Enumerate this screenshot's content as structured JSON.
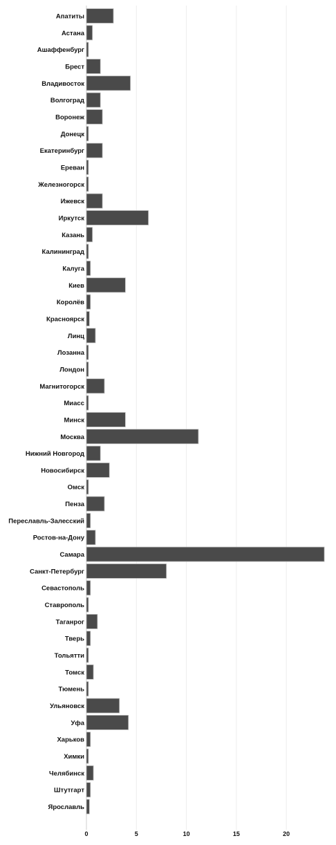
{
  "chart_data": {
    "type": "bar",
    "orientation": "horizontal",
    "title": "",
    "xlabel": "",
    "ylabel": "",
    "xlim": [
      0,
      24
    ],
    "x_ticks": [
      0,
      5,
      10,
      15,
      20
    ],
    "grid": true,
    "bar_color": "#4a4a4a",
    "categories": [
      "Апатиты",
      "Астана",
      "Ашаффенбург",
      "Брест",
      "Владивосток",
      "Волгоград",
      "Воронеж",
      "Донецк",
      "Екатеринбург",
      "Ереван",
      "Железногорск",
      "Ижевск",
      "Иркутск",
      "Казань",
      "Калининград",
      "Калуга",
      "Киев",
      "Королёв",
      "Красноярск",
      "Линц",
      "Лозанна",
      "Лондон",
      "Магнитогорск",
      "Миасс",
      "Минск",
      "Москва",
      "Нижний Новгород",
      "Новосибирск",
      "Омск",
      "Пенза",
      "Переславль-Залесский",
      "Ростов-на-Дону",
      "Самара",
      "Санкт-Петербург",
      "Севастополь",
      "Ставрополь",
      "Таганрог",
      "Тверь",
      "Тольятти",
      "Томск",
      "Тюмень",
      "Ульяновск",
      "Уфа",
      "Харьков",
      "Химки",
      "Челябинск",
      "Штутгарт",
      "Ярославль"
    ],
    "values": [
      2.7,
      0.6,
      0.2,
      1.4,
      4.4,
      1.4,
      1.6,
      0.2,
      1.6,
      0.2,
      0.2,
      1.6,
      6.2,
      0.6,
      0.2,
      0.4,
      3.9,
      0.4,
      0.3,
      0.9,
      0.2,
      0.2,
      1.8,
      0.2,
      3.9,
      11.2,
      1.4,
      2.3,
      0.2,
      1.8,
      0.4,
      0.9,
      23.8,
      8.0,
      0.4,
      0.2,
      1.1,
      0.4,
      0.2,
      0.7,
      0.2,
      3.3,
      4.2,
      0.4,
      0.2,
      0.7,
      0.4,
      0.3
    ]
  }
}
